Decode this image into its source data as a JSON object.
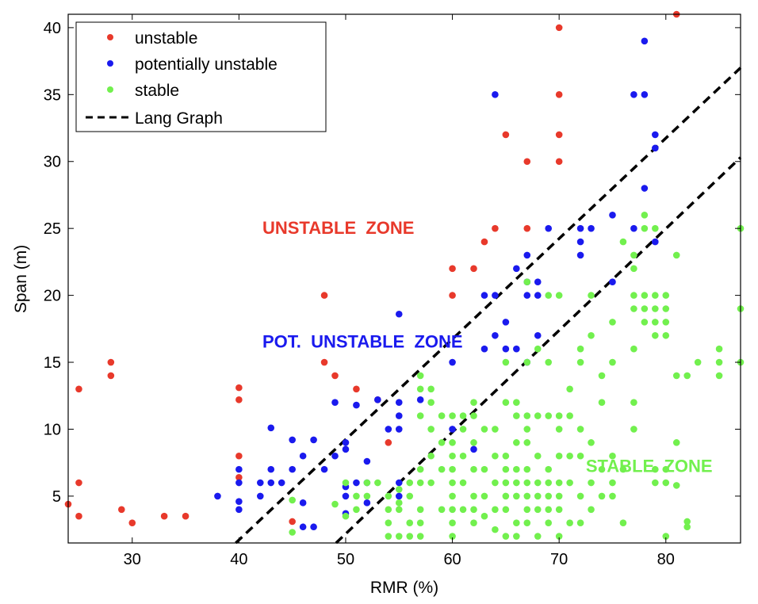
{
  "chart_data": {
    "type": "scatter",
    "xlabel": "RMR (%)",
    "ylabel": "Span (m)",
    "xlim": [
      24,
      87
    ],
    "ylim": [
      1.5,
      41
    ],
    "xticks": [
      30,
      40,
      50,
      60,
      70,
      80
    ],
    "yticks": [
      5,
      10,
      15,
      20,
      25,
      30,
      35,
      40
    ],
    "grid": false,
    "legend_position": "top-left",
    "series": [
      {
        "name": "unstable",
        "color": "#e8392b",
        "points": [
          [
            24,
            4.4
          ],
          [
            25,
            3.5
          ],
          [
            25,
            6
          ],
          [
            25,
            13
          ],
          [
            28,
            14
          ],
          [
            28,
            15
          ],
          [
            29,
            4
          ],
          [
            30,
            3
          ],
          [
            33,
            3.5
          ],
          [
            35,
            3.5
          ],
          [
            40,
            6.4
          ],
          [
            40,
            8
          ],
          [
            40,
            12.2
          ],
          [
            40,
            13.1
          ],
          [
            45,
            3.1
          ],
          [
            48,
            15
          ],
          [
            48,
            20
          ],
          [
            49,
            14
          ],
          [
            51,
            13
          ],
          [
            53,
            12.2
          ],
          [
            54,
            9
          ],
          [
            60,
            20
          ],
          [
            60,
            22
          ],
          [
            62,
            22
          ],
          [
            63,
            24
          ],
          [
            64,
            25
          ],
          [
            65,
            32
          ],
          [
            67,
            30
          ],
          [
            67,
            25
          ],
          [
            70,
            30
          ],
          [
            70,
            32
          ],
          [
            70,
            35
          ],
          [
            70,
            40
          ],
          [
            81,
            41
          ]
        ]
      },
      {
        "name": "potentially unstable",
        "color": "#1a1aee",
        "points": [
          [
            38,
            5
          ],
          [
            40,
            4
          ],
          [
            40,
            4.6
          ],
          [
            40,
            6
          ],
          [
            40,
            7
          ],
          [
            42,
            5
          ],
          [
            42,
            6
          ],
          [
            43,
            6
          ],
          [
            43,
            7
          ],
          [
            43,
            10.1
          ],
          [
            44,
            6
          ],
          [
            45,
            7
          ],
          [
            45,
            9.2
          ],
          [
            46,
            2.7
          ],
          [
            46,
            4.5
          ],
          [
            46,
            8
          ],
          [
            47,
            2.7
          ],
          [
            47,
            9.2
          ],
          [
            48,
            7
          ],
          [
            49,
            8
          ],
          [
            49,
            12
          ],
          [
            50,
            3.7
          ],
          [
            50,
            5
          ],
          [
            50,
            5.7
          ],
          [
            50,
            8.5
          ],
          [
            50,
            9
          ],
          [
            51,
            6
          ],
          [
            51,
            11.8
          ],
          [
            52,
            4.5
          ],
          [
            52,
            6
          ],
          [
            52,
            7.6
          ],
          [
            53,
            12.2
          ],
          [
            54,
            10
          ],
          [
            55,
            5
          ],
          [
            55,
            6
          ],
          [
            55,
            10
          ],
          [
            55,
            11
          ],
          [
            55,
            12
          ],
          [
            55,
            18.6
          ],
          [
            57,
            12.2
          ],
          [
            60,
            10
          ],
          [
            60,
            15
          ],
          [
            62,
            8.5
          ],
          [
            63,
            16
          ],
          [
            63,
            20
          ],
          [
            64,
            17
          ],
          [
            64,
            20
          ],
          [
            64,
            35
          ],
          [
            65,
            18
          ],
          [
            65,
            16
          ],
          [
            66,
            16
          ],
          [
            66,
            22
          ],
          [
            67,
            15
          ],
          [
            67,
            20
          ],
          [
            67,
            21
          ],
          [
            67,
            23
          ],
          [
            68,
            17
          ],
          [
            68,
            20
          ],
          [
            68,
            21
          ],
          [
            69,
            25
          ],
          [
            72,
            23
          ],
          [
            72,
            24
          ],
          [
            72,
            25
          ],
          [
            73,
            25
          ],
          [
            75,
            21
          ],
          [
            75,
            26
          ],
          [
            77,
            25
          ],
          [
            77,
            35
          ],
          [
            78,
            28
          ],
          [
            78,
            35
          ],
          [
            78,
            39
          ],
          [
            79,
            24
          ],
          [
            79,
            31
          ],
          [
            79,
            32
          ]
        ]
      },
      {
        "name": "stable",
        "color": "#72f04e",
        "points": [
          [
            45,
            2.3
          ],
          [
            45,
            4.7
          ],
          [
            49,
            4.4
          ],
          [
            50,
            6
          ],
          [
            50,
            3.5
          ],
          [
            51,
            4
          ],
          [
            51,
            5
          ],
          [
            52,
            5
          ],
          [
            52,
            6
          ],
          [
            53,
            6
          ],
          [
            54,
            2
          ],
          [
            54,
            3
          ],
          [
            54,
            4
          ],
          [
            54,
            5
          ],
          [
            55,
            2
          ],
          [
            55,
            4
          ],
          [
            55,
            4.5
          ],
          [
            55,
            5.5
          ],
          [
            56,
            2
          ],
          [
            56,
            3
          ],
          [
            56,
            5
          ],
          [
            56,
            6
          ],
          [
            57,
            2
          ],
          [
            57,
            3
          ],
          [
            57,
            4
          ],
          [
            57,
            6
          ],
          [
            57,
            7
          ],
          [
            57,
            11
          ],
          [
            57,
            13
          ],
          [
            57,
            14
          ],
          [
            58,
            6
          ],
          [
            58,
            8
          ],
          [
            58,
            10
          ],
          [
            58,
            12
          ],
          [
            58,
            13
          ],
          [
            59,
            4
          ],
          [
            59,
            7
          ],
          [
            59,
            9
          ],
          [
            59,
            11
          ],
          [
            60,
            2
          ],
          [
            60,
            3
          ],
          [
            60,
            4
          ],
          [
            60,
            5
          ],
          [
            60,
            6
          ],
          [
            60,
            7
          ],
          [
            60,
            8
          ],
          [
            60,
            9
          ],
          [
            60,
            11
          ],
          [
            61,
            4
          ],
          [
            61,
            6
          ],
          [
            61,
            8
          ],
          [
            61,
            10
          ],
          [
            61,
            11
          ],
          [
            62,
            3
          ],
          [
            62,
            4
          ],
          [
            62,
            5
          ],
          [
            62,
            7
          ],
          [
            62,
            9
          ],
          [
            62,
            11
          ],
          [
            62,
            12
          ],
          [
            63,
            3.5
          ],
          [
            63,
            5
          ],
          [
            63,
            7
          ],
          [
            63,
            10
          ],
          [
            64,
            2.5
          ],
          [
            64,
            4
          ],
          [
            64,
            6
          ],
          [
            64,
            8
          ],
          [
            64,
            10
          ],
          [
            65,
            2
          ],
          [
            65,
            4
          ],
          [
            65,
            5
          ],
          [
            65,
            6
          ],
          [
            65,
            7
          ],
          [
            65,
            8
          ],
          [
            65,
            12
          ],
          [
            65,
            15
          ],
          [
            66,
            2
          ],
          [
            66,
            3
          ],
          [
            66,
            5
          ],
          [
            66,
            6
          ],
          [
            66,
            7
          ],
          [
            66,
            9
          ],
          [
            66,
            11
          ],
          [
            66,
            12
          ],
          [
            67,
            3
          ],
          [
            67,
            4
          ],
          [
            67,
            5
          ],
          [
            67,
            6
          ],
          [
            67,
            7
          ],
          [
            67,
            9
          ],
          [
            67,
            10
          ],
          [
            67,
            11
          ],
          [
            67,
            15
          ],
          [
            67,
            21
          ],
          [
            68,
            2
          ],
          [
            68,
            4
          ],
          [
            68,
            5
          ],
          [
            68,
            6
          ],
          [
            68,
            8
          ],
          [
            68,
            11
          ],
          [
            68,
            16
          ],
          [
            69,
            3
          ],
          [
            69,
            4
          ],
          [
            69,
            5
          ],
          [
            69,
            6
          ],
          [
            69,
            7
          ],
          [
            69,
            11
          ],
          [
            69,
            15
          ],
          [
            69,
            20
          ],
          [
            70,
            2
          ],
          [
            70,
            4
          ],
          [
            70,
            5
          ],
          [
            70,
            6
          ],
          [
            70,
            8
          ],
          [
            70,
            10
          ],
          [
            70,
            11
          ],
          [
            70,
            20
          ],
          [
            71,
            3
          ],
          [
            71,
            6
          ],
          [
            71,
            8
          ],
          [
            71,
            11
          ],
          [
            71,
            13
          ],
          [
            72,
            3
          ],
          [
            72,
            5
          ],
          [
            72,
            8
          ],
          [
            72,
            10
          ],
          [
            72,
            15
          ],
          [
            72,
            16
          ],
          [
            73,
            4
          ],
          [
            73,
            6
          ],
          [
            73,
            9
          ],
          [
            73,
            17
          ],
          [
            73,
            20
          ],
          [
            74,
            5
          ],
          [
            74,
            7
          ],
          [
            74,
            12
          ],
          [
            74,
            14
          ],
          [
            75,
            5
          ],
          [
            75,
            6
          ],
          [
            75,
            8
          ],
          [
            75,
            15
          ],
          [
            75,
            18
          ],
          [
            76,
            3
          ],
          [
            76,
            7
          ],
          [
            76,
            24
          ],
          [
            77,
            10
          ],
          [
            77,
            12
          ],
          [
            77,
            16
          ],
          [
            77,
            19
          ],
          [
            77,
            20
          ],
          [
            77,
            22
          ],
          [
            77,
            23
          ],
          [
            78,
            18
          ],
          [
            78,
            19
          ],
          [
            78,
            20
          ],
          [
            78,
            25
          ],
          [
            78,
            26
          ],
          [
            79,
            6
          ],
          [
            79,
            7
          ],
          [
            79,
            17
          ],
          [
            79,
            18
          ],
          [
            79,
            19
          ],
          [
            79,
            20
          ],
          [
            79,
            25
          ],
          [
            80,
            2
          ],
          [
            80,
            6
          ],
          [
            80,
            7
          ],
          [
            80,
            17
          ],
          [
            80,
            18
          ],
          [
            80,
            19
          ],
          [
            80,
            20
          ],
          [
            81,
            5.8
          ],
          [
            81,
            9
          ],
          [
            81,
            14
          ],
          [
            81,
            23
          ],
          [
            82,
            2.7
          ],
          [
            82,
            3.1
          ],
          [
            82,
            14
          ],
          [
            83,
            15
          ],
          [
            85,
            14
          ],
          [
            85,
            15
          ],
          [
            85,
            16
          ],
          [
            87,
            15
          ],
          [
            87,
            19
          ],
          [
            87,
            25
          ]
        ]
      }
    ],
    "lines": [
      {
        "name": "Lang Graph",
        "style": "dashed",
        "color": "#000000",
        "segments": [
          {
            "x": [
              39.7,
              87
            ],
            "y": [
              1.5,
              37
            ]
          },
          {
            "x": [
              49.1,
              87
            ],
            "y": [
              1.5,
              30.3
            ]
          }
        ]
      }
    ],
    "annotations": [
      {
        "text": "UNSTABLE  ZONE",
        "x": 42.2,
        "y": 24.6,
        "color": "#e8392b"
      },
      {
        "text": "POT.  UNSTABLE  ZONE",
        "x": 42.2,
        "y": 16.1,
        "color": "#1a1aee"
      },
      {
        "text": "STABLE  ZONE",
        "x": 72.5,
        "y": 6.8,
        "color": "#72f04e"
      }
    ]
  }
}
